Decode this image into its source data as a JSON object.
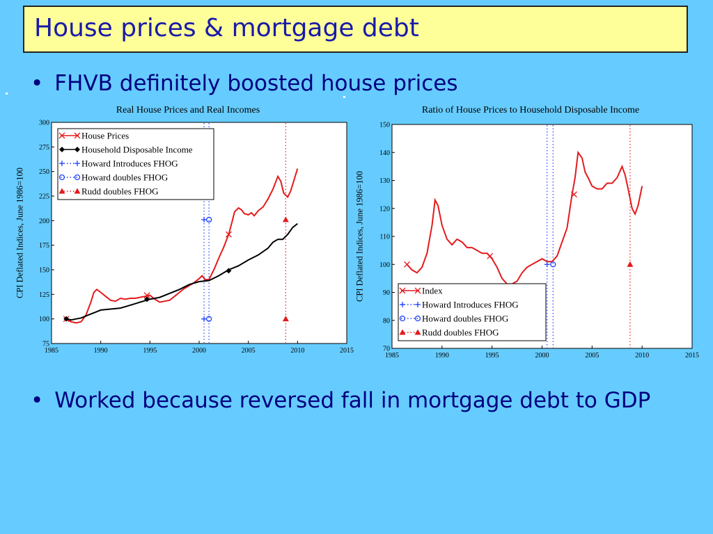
{
  "slide": {
    "title": "House prices & mortgage debt",
    "bullets": [
      "FHVB definitely boosted house prices",
      "Worked because reversed fall in mortgage debt to GDP"
    ],
    "bullet_symbol": "•",
    "colors": {
      "background": "#66ccff",
      "title_box": "#ffff99",
      "title_text": "#1a1aa8",
      "house_price_series": "#e41a1c",
      "income_series": "#000000",
      "fhog_markers": "#1f3fff",
      "rudd_marker": "#e41a1c"
    }
  },
  "chart_data": [
    {
      "type": "line",
      "title": "Real House Prices and Real Incomes",
      "xlabel": "",
      "ylabel": "CPI Deflated Indices, June 1986=100",
      "xlim": [
        1985,
        2015
      ],
      "ylim": [
        75,
        300
      ],
      "xticks": [
        1985,
        1990,
        1995,
        2000,
        2005,
        2010,
        2015
      ],
      "yticks": [
        75,
        100,
        125,
        150,
        175,
        200,
        225,
        250,
        275,
        300
      ],
      "grid": false,
      "legend_position": "top-left",
      "legend": [
        "House Prices",
        "Household Disposable Income",
        "Howard Introduces FHOG",
        "Howard doubles FHOG",
        "Rudd doubles FHOG"
      ],
      "series": [
        {
          "name": "House Prices",
          "style": "line",
          "color": "#e41a1c",
          "x": [
            1986.5,
            1987,
            1987.5,
            1988,
            1988.5,
            1989,
            1989.3,
            1989.6,
            1990,
            1990.5,
            1991,
            1991.5,
            1992,
            1992.5,
            1993,
            1993.5,
            1994,
            1994.5,
            1995,
            1995.5,
            1996,
            1996.5,
            1997,
            1997.5,
            1998,
            1998.5,
            1999,
            1999.5,
            2000,
            2000.3,
            2000.6,
            2001,
            2001.5,
            2002,
            2002.5,
            2003,
            2003.3,
            2003.6,
            2004,
            2004.3,
            2004.6,
            2005,
            2005.3,
            2005.6,
            2006,
            2006.5,
            2007,
            2007.5,
            2008,
            2008.3,
            2008.6,
            2009,
            2009.3,
            2009.6,
            2010
          ],
          "values": [
            100,
            97,
            96,
            97,
            104,
            117,
            127,
            130,
            127,
            123,
            119,
            118,
            121,
            120,
            121,
            121,
            122,
            123,
            124,
            120,
            117,
            118,
            119,
            123,
            127,
            131,
            134,
            137,
            141,
            144,
            140,
            140,
            150,
            162,
            173,
            186,
            197,
            209,
            213,
            211,
            207,
            206,
            208,
            205,
            210,
            214,
            222,
            232,
            245,
            240,
            228,
            224,
            230,
            240,
            253
          ]
        },
        {
          "name": "Household Disposable Income",
          "style": "line",
          "color": "#000000",
          "x": [
            1986.5,
            1987,
            1987.5,
            1988,
            1988.5,
            1989,
            1989.5,
            1990,
            1991,
            1992,
            1993,
            1994,
            1995,
            1996,
            1997,
            1998,
            1999,
            2000,
            2001,
            2002,
            2003,
            2004,
            2005,
            2006,
            2007,
            2007.5,
            2008,
            2008.5,
            2009,
            2009.5,
            2010
          ],
          "values": [
            100,
            99,
            100,
            101,
            103,
            105,
            107,
            109,
            110,
            111,
            114,
            117,
            120,
            122,
            126,
            130,
            135,
            138,
            139,
            144,
            150,
            154,
            160,
            165,
            172,
            178,
            181,
            181,
            186,
            193,
            197
          ]
        },
        {
          "name": "Howard Introduces FHOG",
          "style": "markers",
          "marker": "+",
          "color": "#1f3fff",
          "x": [
            2000.5,
            2000.5
          ],
          "values": [
            100,
            201
          ]
        },
        {
          "name": "Howard doubles FHOG",
          "style": "markers",
          "marker": "o",
          "color": "#1f3fff",
          "x": [
            2001,
            2001
          ],
          "values": [
            100,
            201
          ]
        },
        {
          "name": "Rudd doubles FHOG",
          "style": "markers",
          "marker": "triangle",
          "color": "#e41a1c",
          "x": [
            2008.8,
            2008.8
          ],
          "values": [
            100,
            201
          ]
        }
      ],
      "point_markers": [
        {
          "series": "House Prices",
          "marker": "x",
          "x": [
            1986.5,
            1994.7,
            2003
          ],
          "values": [
            100,
            124,
            186
          ]
        },
        {
          "series": "Household Disposable Income",
          "marker": "diamond",
          "x": [
            1986.5,
            1994.7,
            2003
          ],
          "values": [
            100,
            120,
            149
          ]
        }
      ],
      "vlines": [
        {
          "x": 2000.5,
          "color": "#1f3fff"
        },
        {
          "x": 2001,
          "color": "#1f3fff"
        },
        {
          "x": 2008.8,
          "color": "#e41a1c"
        }
      ]
    },
    {
      "type": "line",
      "title": "Ratio of House Prices to Household Disposable Income",
      "xlabel": "",
      "ylabel": "CPI Deflated Indices, June 1986=100",
      "xlim": [
        1985,
        2015
      ],
      "ylim": [
        70,
        150
      ],
      "xticks": [
        1985,
        1990,
        1995,
        2000,
        2005,
        2010,
        2015
      ],
      "yticks": [
        70,
        80,
        90,
        100,
        110,
        120,
        130,
        140,
        150
      ],
      "grid": false,
      "legend_position": "bottom-left",
      "legend": [
        "Index",
        "Howard Introduces FHOG",
        "Howard doubles FHOG",
        "Rudd doubles FHOG"
      ],
      "series": [
        {
          "name": "Index",
          "style": "line",
          "color": "#e41a1c",
          "x": [
            1986.5,
            1987,
            1987.5,
            1988,
            1988.5,
            1989,
            1989.3,
            1989.6,
            1990,
            1990.5,
            1991,
            1991.5,
            1992,
            1992.5,
            1993,
            1993.5,
            1994,
            1994.5,
            1995,
            1995.5,
            1996,
            1996.5,
            1997,
            1997.5,
            1998,
            1998.5,
            1999,
            1999.5,
            2000,
            2000.5,
            2001,
            2001.5,
            2002,
            2002.5,
            2003,
            2003.3,
            2003.6,
            2004,
            2004.3,
            2004.6,
            2005,
            2005.5,
            2006,
            2006.5,
            2007,
            2007.5,
            2008,
            2008.3,
            2008.6,
            2009,
            2009.3,
            2009.6,
            2010
          ],
          "values": [
            100,
            98,
            97,
            99,
            104,
            114,
            123,
            121,
            114,
            109,
            107,
            109,
            108,
            106,
            106,
            105,
            104,
            104,
            102,
            99,
            95,
            93,
            93,
            94,
            97,
            99,
            100,
            101,
            102,
            101,
            101,
            103,
            108,
            113,
            125,
            131,
            140,
            138,
            133,
            131,
            128,
            127,
            127,
            129,
            129,
            131,
            135,
            132,
            127,
            120,
            118,
            121,
            128
          ]
        },
        {
          "name": "Howard Introduces FHOG",
          "style": "markers",
          "marker": "+",
          "color": "#1f3fff",
          "x": [
            2000.5
          ],
          "values": [
            100
          ]
        },
        {
          "name": "Howard doubles FHOG",
          "style": "markers",
          "marker": "o",
          "color": "#1f3fff",
          "x": [
            2001.1
          ],
          "values": [
            100
          ]
        },
        {
          "name": "Rudd doubles FHOG",
          "style": "markers",
          "marker": "triangle",
          "color": "#e41a1c",
          "x": [
            2008.8
          ],
          "values": [
            100
          ]
        }
      ],
      "point_markers": [
        {
          "series": "Index",
          "marker": "x",
          "x": [
            1986.5,
            1994.8,
            2003.2
          ],
          "values": [
            100,
            103,
            125
          ]
        }
      ],
      "vlines": [
        {
          "x": 2000.5,
          "color": "#1f3fff"
        },
        {
          "x": 2001.1,
          "color": "#1f3fff"
        },
        {
          "x": 2008.8,
          "color": "#e41a1c"
        }
      ]
    }
  ]
}
